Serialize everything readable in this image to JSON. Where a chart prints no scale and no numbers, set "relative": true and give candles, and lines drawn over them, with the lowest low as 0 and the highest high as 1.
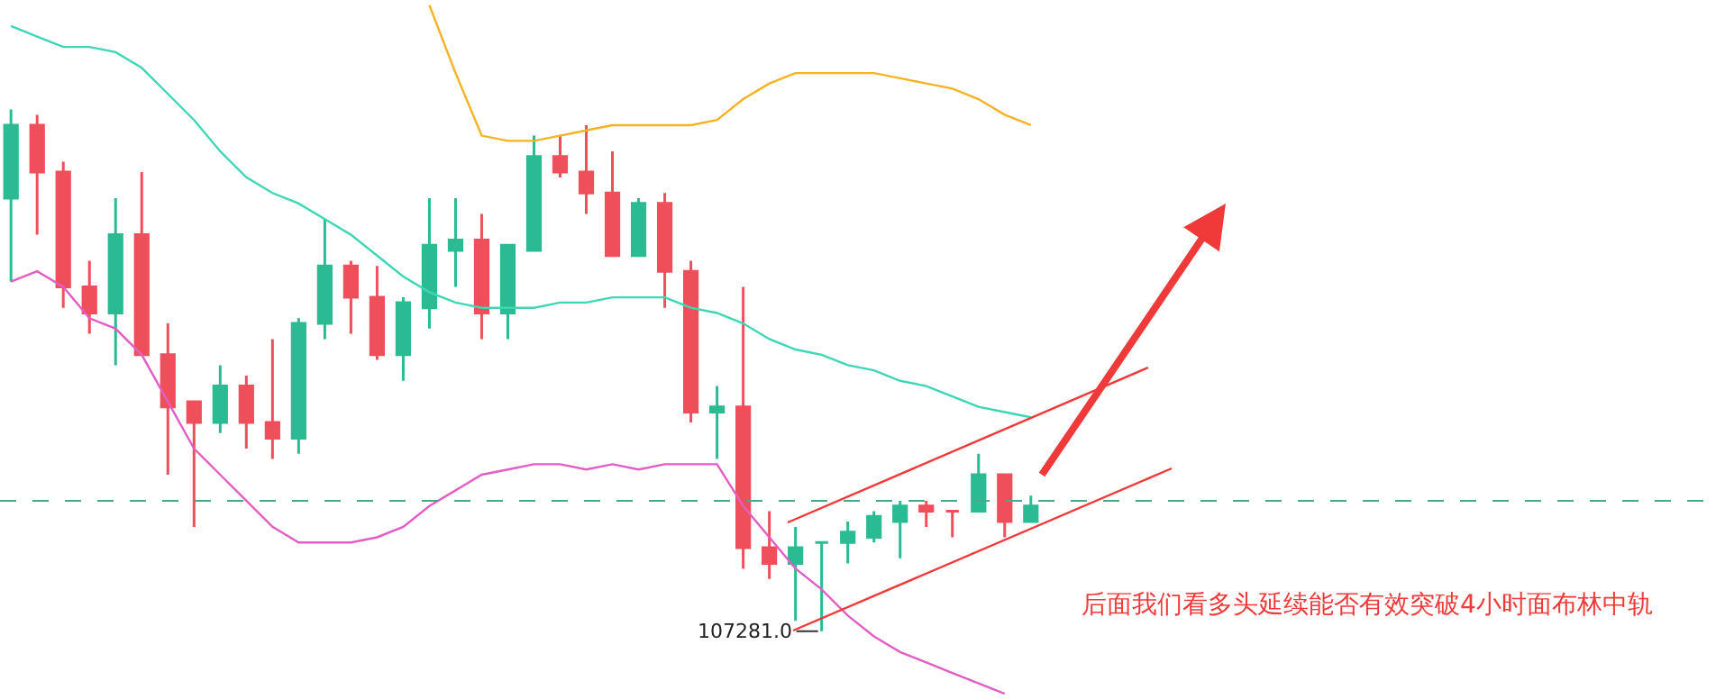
{
  "chart_data": {
    "type": "candlestick",
    "relative": true,
    "categories": [
      null,
      null,
      null,
      null,
      null,
      null,
      null,
      null,
      null,
      null,
      null,
      null,
      null,
      null,
      null,
      null,
      null,
      null,
      null,
      null,
      null,
      null,
      null,
      null,
      null,
      null,
      null,
      null,
      null,
      null,
      null,
      null,
      null,
      null,
      null,
      null,
      null,
      null,
      null,
      null
    ],
    "colors": [
      "#2bbb92",
      "#ef4f5a",
      "#ef4f5a",
      "#ef4f5a",
      "#2bbb92",
      "#ef4f5a",
      "#ef4f5a",
      "#ef4f5a",
      "#2bbb92",
      "#ef4f5a",
      "#ef4f5a",
      "#2bbb92",
      "#2bbb92",
      "#ef4f5a",
      "#ef4f5a",
      "#2bbb92",
      "#2bbb92",
      "#2bbb92",
      "#ef4f5a",
      "#2bbb92",
      "#2bbb92",
      "#ef4f5a",
      "#ef4f5a",
      "#ef4f5a",
      "#2bbb92",
      "#ef4f5a",
      "#ef4f5a",
      "#2bbb92",
      "#ef4f5a",
      "#ef4f5a",
      "#2bbb92",
      "#2bbb92",
      "#2bbb92",
      "#2bbb92",
      "#2bbb92",
      "#ef4f5a",
      "#ef4f5a",
      "#2bbb92",
      "#ef4f5a",
      "#2bbb92"
    ],
    "ohlc": [
      [
        0.83,
        1.0,
        0.67,
        0.97
      ],
      [
        0.97,
        0.99,
        0.76,
        0.88
      ],
      [
        0.88,
        0.9,
        0.62,
        0.66
      ],
      [
        0.66,
        0.71,
        0.57,
        0.61
      ],
      [
        0.61,
        0.83,
        0.51,
        0.76
      ],
      [
        0.76,
        0.88,
        0.53,
        0.53
      ],
      [
        0.53,
        0.59,
        0.3,
        0.43
      ],
      [
        0.44,
        0.44,
        0.2,
        0.4
      ],
      [
        0.4,
        0.51,
        0.38,
        0.47
      ],
      [
        0.47,
        0.49,
        0.35,
        0.4
      ],
      [
        0.4,
        0.56,
        0.33,
        0.37
      ],
      [
        0.37,
        0.6,
        0.34,
        0.59
      ],
      [
        0.59,
        0.79,
        0.56,
        0.7
      ],
      [
        0.7,
        0.71,
        0.57,
        0.64
      ],
      [
        0.64,
        0.7,
        0.52,
        0.53
      ],
      [
        0.53,
        0.64,
        0.48,
        0.63
      ],
      [
        0.62,
        0.83,
        0.58,
        0.74
      ],
      [
        0.73,
        0.83,
        0.66,
        0.75
      ],
      [
        0.75,
        0.8,
        0.56,
        0.61
      ],
      [
        0.61,
        0.74,
        0.56,
        0.74
      ],
      [
        0.73,
        0.95,
        0.73,
        0.91
      ],
      [
        0.91,
        0.95,
        0.87,
        0.88
      ],
      [
        0.88,
        0.97,
        0.8,
        0.84
      ],
      [
        0.84,
        0.92,
        0.72,
        0.72
      ],
      [
        0.72,
        0.83,
        0.72,
        0.82
      ],
      [
        0.82,
        0.84,
        0.62,
        0.69
      ],
      [
        0.69,
        0.71,
        0.4,
        0.42
      ],
      [
        0.42,
        0.47,
        0.33,
        0.43
      ],
      [
        0.43,
        0.66,
        0.12,
        0.16
      ],
      [
        0.16,
        0.23,
        0.1,
        0.13
      ],
      [
        0.13,
        0.2,
        0.02,
        0.16
      ],
      [
        0.17,
        0.17,
        0.0,
        0.17
      ],
      [
        0.17,
        0.21,
        0.13,
        0.19
      ],
      [
        0.18,
        0.23,
        0.17,
        0.22
      ],
      [
        0.21,
        0.25,
        0.14,
        0.24
      ],
      [
        0.24,
        0.25,
        0.2,
        0.23
      ],
      [
        0.23,
        0.23,
        0.18,
        0.23
      ],
      [
        0.23,
        0.34,
        0.23,
        0.3
      ],
      [
        0.3,
        0.3,
        0.18,
        0.21
      ],
      [
        0.21,
        0.26,
        0.21,
        0.24
      ]
    ],
    "series": [
      {
        "type": "line",
        "color": "#f5b324",
        "values": [
          null,
          null,
          null,
          null,
          null,
          null,
          null,
          null,
          null,
          null,
          null,
          null,
          null,
          null,
          null,
          null,
          1.2,
          1.07,
          0.95,
          0.94,
          0.94,
          0.95,
          0.96,
          0.97,
          0.97,
          0.97,
          0.97,
          0.98,
          1.02,
          1.05,
          1.07,
          1.07,
          1.07,
          1.07,
          1.06,
          1.05,
          1.04,
          1.02,
          0.99,
          0.97
        ]
      },
      {
        "type": "line",
        "color": "#3fd6b6",
        "values": [
          1.16,
          1.14,
          1.12,
          1.12,
          1.11,
          1.08,
          1.03,
          0.98,
          0.92,
          0.87,
          0.84,
          0.82,
          0.79,
          0.76,
          0.72,
          0.68,
          0.65,
          0.63,
          0.62,
          0.62,
          0.62,
          0.63,
          0.63,
          0.64,
          0.64,
          0.64,
          0.62,
          0.61,
          0.59,
          0.56,
          0.54,
          0.53,
          0.51,
          0.5,
          0.48,
          0.47,
          0.45,
          0.43,
          0.42,
          0.41
        ]
      },
      {
        "type": "line",
        "color": "#e35ec4",
        "values": [
          0.67,
          0.69,
          0.66,
          0.6,
          0.58,
          0.53,
          0.44,
          0.35,
          0.3,
          0.25,
          0.2,
          0.17,
          0.17,
          0.17,
          0.18,
          0.2,
          0.24,
          0.27,
          0.3,
          0.31,
          0.32,
          0.32,
          0.31,
          0.32,
          0.31,
          0.32,
          0.32,
          0.32,
          0.24,
          0.18,
          0.12,
          0.08,
          0.03,
          -0.01,
          -0.04,
          -0.06,
          -0.08,
          -0.1,
          -0.12,
          null
        ]
      }
    ],
    "ref_lines": [
      {
        "axis": "y",
        "value": 0.25,
        "color": "#4aa88a",
        "line_style": "dashed"
      }
    ],
    "annotations": [
      "107281.0",
      "后面我们看多头延续能否有效突破4小时面布林中轨"
    ]
  }
}
